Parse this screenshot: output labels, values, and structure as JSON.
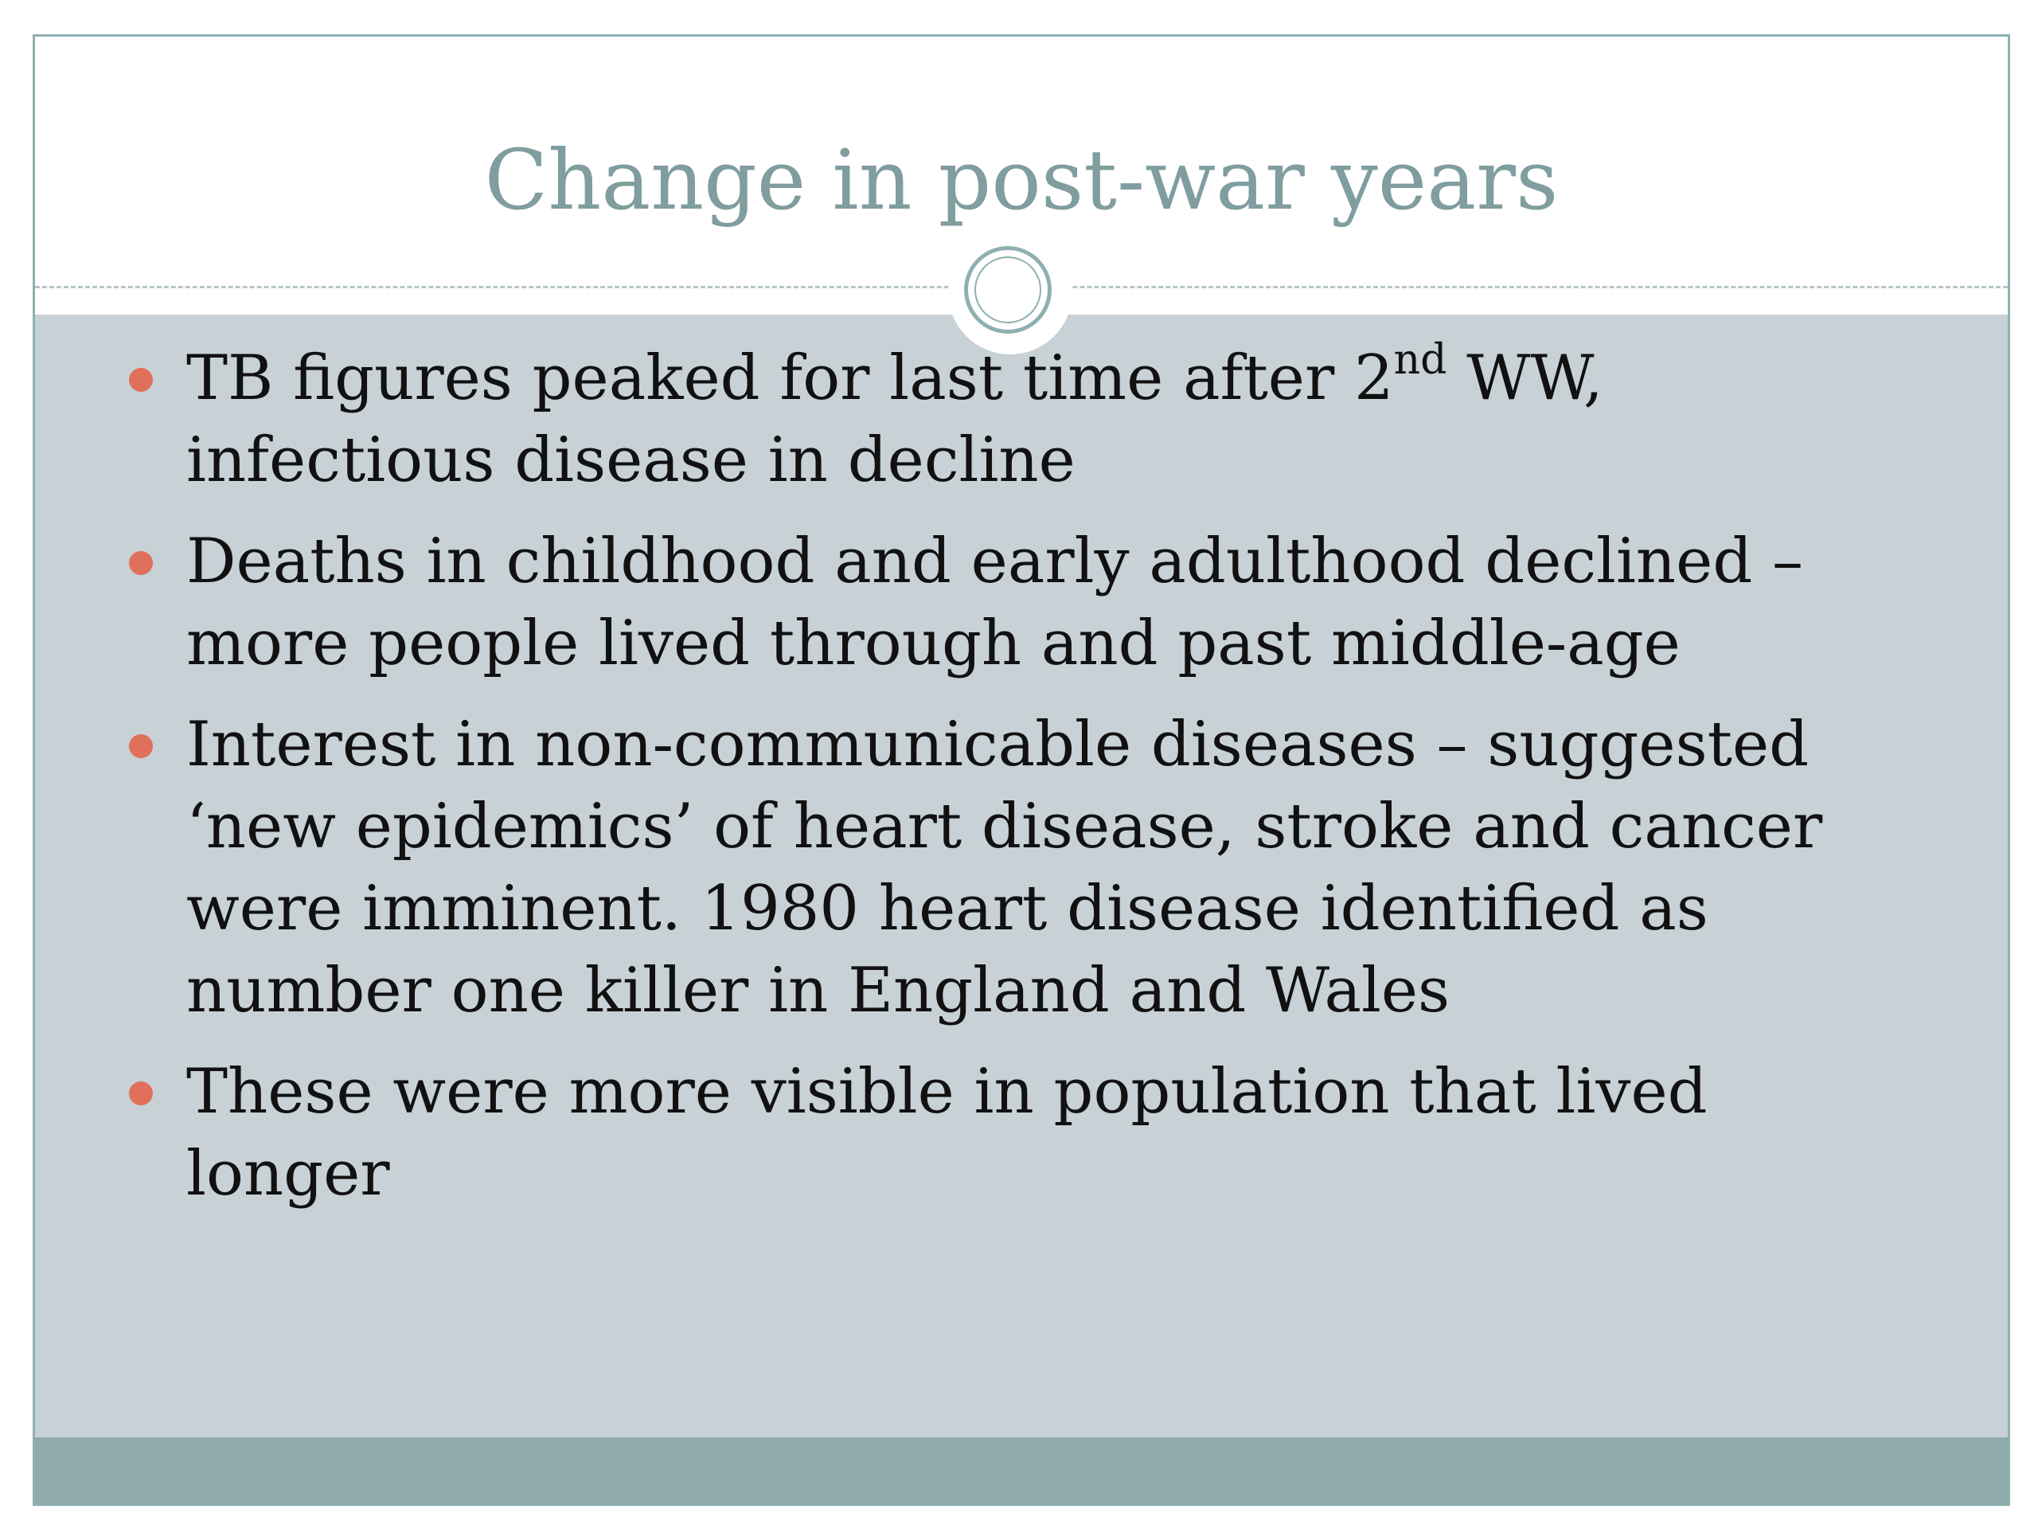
{
  "slide": {
    "title": "Change in post-war years",
    "bullets": [
      {
        "pre": "TB figures peaked for last time after 2",
        "sup": "nd",
        "post": " WW, infectious disease in decline"
      },
      {
        "text": "Deaths in childhood and early adulthood declined – more people lived through and past middle-age"
      },
      {
        "text": "Interest in non-communicable diseases – suggested ‘new epidemics’ of heart disease, stroke and cancer were imminent. 1980 heart disease identified as number one killer in England and Wales"
      },
      {
        "text": "These were more visible in population that lived longer"
      }
    ]
  },
  "colors": {
    "title": "#809d9f",
    "body_background": "#c7d1d6",
    "footer_bar": "#8eaaab",
    "bullet_dot": "#e0705a",
    "border": "#8fb0b0"
  }
}
